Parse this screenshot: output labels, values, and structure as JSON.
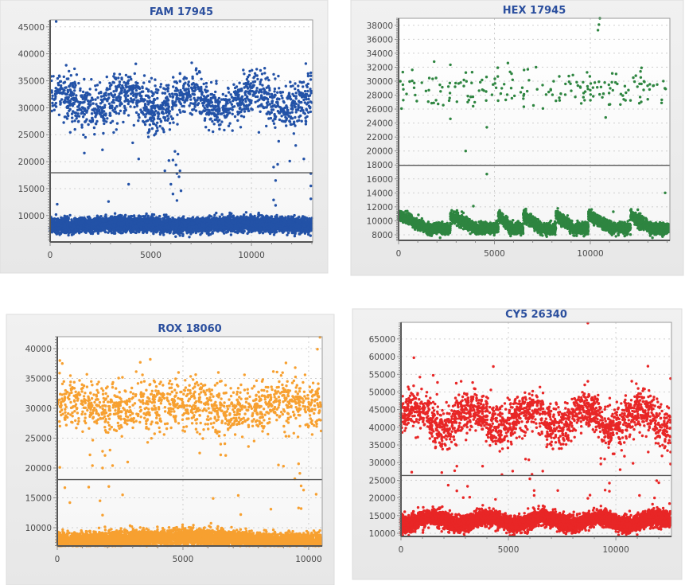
{
  "chart_data": [
    {
      "type": "scatter",
      "title": "FAM 17945",
      "color": "#2352a7",
      "threshold": 17945,
      "xlim": [
        0,
        13040
      ],
      "ylim": [
        5100,
        46300
      ],
      "xticks": [
        0,
        5000,
        10000
      ],
      "yticks": [
        10000,
        15000,
        20000,
        25000,
        30000,
        35000,
        40000,
        45000
      ],
      "grid": true,
      "clusters": [
        {
          "name": "positive",
          "x_range": [
            0,
            13000
          ],
          "y_mean": 31200,
          "y_sd": 2100,
          "wave_amp": 1400,
          "wave_period": 3200,
          "count": 1500
        },
        {
          "name": "negative",
          "x_range": [
            0,
            13000
          ],
          "y_mean": 8300,
          "y_sd": 650,
          "wave_amp": 200,
          "wave_period": 6000,
          "count": 6000
        }
      ],
      "outliers": [
        [
          300,
          46000
        ],
        [
          1700,
          21600
        ],
        [
          2600,
          22200
        ],
        [
          4400,
          20500
        ],
        [
          4100,
          23500
        ],
        [
          5700,
          18300
        ],
        [
          5900,
          20200
        ],
        [
          6100,
          20300
        ],
        [
          6200,
          21900
        ],
        [
          6250,
          19400
        ],
        [
          6300,
          17800
        ],
        [
          6350,
          21400
        ],
        [
          6400,
          17200
        ],
        [
          6450,
          18300
        ],
        [
          6000,
          15800
        ],
        [
          6100,
          14000
        ],
        [
          6300,
          12800
        ],
        [
          6500,
          14600
        ],
        [
          3900,
          15800
        ],
        [
          11100,
          19000
        ],
        [
          11300,
          19500
        ],
        [
          11200,
          16500
        ],
        [
          11100,
          12900
        ],
        [
          11200,
          11900
        ],
        [
          12200,
          23000
        ],
        [
          12600,
          20500
        ],
        [
          11900,
          20100
        ],
        [
          12950,
          17800
        ],
        [
          12950,
          15500
        ],
        [
          12950,
          13100
        ],
        [
          12700,
          38200
        ],
        [
          12950,
          36500
        ],
        [
          350,
          12100
        ],
        [
          2900,
          12600
        ]
      ]
    },
    {
      "type": "scatter",
      "title": "HEX 17945",
      "color": "#2e8540",
      "threshold": 17945,
      "xlim": [
        0,
        14150
      ],
      "ylim": [
        7200,
        39000
      ],
      "xticks": [
        0,
        5000,
        10000
      ],
      "yticks": [
        8000,
        10000,
        12000,
        14000,
        16000,
        18000,
        20000,
        22000,
        24000,
        26000,
        28000,
        30000,
        32000,
        34000,
        36000,
        38000
      ],
      "grid": true,
      "clusters": [
        {
          "name": "positive",
          "x_range": [
            0,
            14100
          ],
          "y_mean": 28800,
          "y_sd": 1500,
          "wave_amp": 0,
          "wave_period": 5000,
          "count": 190
        },
        {
          "name": "negative",
          "x_range": [
            0,
            14100
          ],
          "pattern": "sawtooth",
          "resets": [
            0,
            2700,
            5200,
            6500,
            8200,
            9900,
            12100
          ],
          "y_top": 10800,
          "y_bottom": 8900,
          "y_sd": 380,
          "count": 6000
        }
      ],
      "outliers": [
        [
          10500,
          39000
        ],
        [
          10450,
          38100
        ],
        [
          10400,
          37300
        ],
        [
          3500,
          20000
        ],
        [
          4600,
          23400
        ],
        [
          5700,
          32600
        ],
        [
          2700,
          24600
        ],
        [
          4600,
          16700
        ],
        [
          13900,
          14000
        ],
        [
          3900,
          12100
        ],
        [
          3300,
          11300
        ],
        [
          11200,
          11300
        ],
        [
          12100,
          11500
        ],
        [
          400,
          11000
        ],
        [
          10800,
          24800
        ]
      ]
    },
    {
      "type": "scatter",
      "title": "ROX 18060",
      "color": "#f7a030",
      "threshold": 18060,
      "xlim": [
        0,
        10540
      ],
      "ylim": [
        6930,
        42000
      ],
      "xticks": [
        0,
        5000,
        10000
      ],
      "yticks": [
        10000,
        15000,
        20000,
        25000,
        30000,
        35000,
        40000
      ],
      "grid": true,
      "clusters": [
        {
          "name": "positive",
          "x_range": [
            0,
            10500
          ],
          "y_mean": 30200,
          "y_sd": 2200,
          "wave_amp": 900,
          "wave_period": 4500,
          "count": 1200
        },
        {
          "name": "negative",
          "x_range": [
            0,
            10500
          ],
          "y_mean": 8000,
          "y_sd": 700,
          "wave_amp": 400,
          "wave_period": 10000,
          "count": 5000
        }
      ],
      "outliers": [
        [
          100,
          38000
        ],
        [
          200,
          37500
        ],
        [
          100,
          20100
        ],
        [
          1300,
          22200
        ],
        [
          1400,
          20400
        ],
        [
          1800,
          22800
        ],
        [
          1800,
          20000
        ],
        [
          1900,
          22100
        ],
        [
          2100,
          23000
        ],
        [
          2200,
          20400
        ],
        [
          2800,
          21000
        ],
        [
          6500,
          24000
        ],
        [
          6500,
          22200
        ],
        [
          6700,
          22100
        ],
        [
          8800,
          20500
        ],
        [
          9000,
          20300
        ],
        [
          9600,
          20700
        ],
        [
          9650,
          19100
        ],
        [
          9450,
          18200
        ],
        [
          3700,
          38200
        ],
        [
          3300,
          37700
        ],
        [
          10450,
          41900
        ],
        [
          10350,
          39900
        ],
        [
          300,
          16700
        ],
        [
          1250,
          16800
        ],
        [
          2050,
          16900
        ],
        [
          1700,
          14500
        ],
        [
          500,
          14200
        ],
        [
          2600,
          15500
        ],
        [
          6200,
          14900
        ],
        [
          7200,
          15400
        ],
        [
          9700,
          17000
        ],
        [
          9800,
          16300
        ],
        [
          10300,
          15600
        ],
        [
          9600,
          13300
        ],
        [
          9700,
          13200
        ],
        [
          8500,
          13100
        ],
        [
          7300,
          12200
        ],
        [
          1800,
          12100
        ]
      ]
    },
    {
      "type": "scatter",
      "title": "CY5 26340",
      "color": "#e82626",
      "threshold": 26340,
      "xlim": [
        0,
        12590
      ],
      "ylim": [
        9100,
        69700
      ],
      "xticks": [
        0,
        5000,
        10000
      ],
      "yticks": [
        10000,
        15000,
        20000,
        25000,
        30000,
        35000,
        40000,
        45000,
        50000,
        55000,
        60000,
        65000
      ],
      "grid": true,
      "clusters": [
        {
          "name": "positive",
          "x_range": [
            0,
            12550
          ],
          "y_mean": 42500,
          "y_sd": 3000,
          "wave_amp": 2800,
          "wave_period": 2600,
          "count": 1900
        },
        {
          "name": "negative",
          "x_range": [
            0,
            12550
          ],
          "y_mean": 13500,
          "y_sd": 1100,
          "wave_amp": 1100,
          "wave_period": 2600,
          "count": 6000
        }
      ],
      "outliers": [
        [
          8700,
          69500
        ],
        [
          600,
          59700
        ],
        [
          4300,
          57200
        ],
        [
          1500,
          54700
        ],
        [
          1700,
          52700
        ],
        [
          2800,
          53000
        ],
        [
          8700,
          53000
        ],
        [
          12550,
          53800
        ],
        [
          500,
          27300
        ],
        [
          1900,
          27200
        ],
        [
          2600,
          29000
        ],
        [
          2500,
          27700
        ],
        [
          3800,
          29000
        ],
        [
          4700,
          26600
        ],
        [
          5200,
          27600
        ],
        [
          5800,
          31000
        ],
        [
          5950,
          30800
        ],
        [
          6100,
          26700
        ],
        [
          6600,
          27600
        ],
        [
          9300,
          31200
        ],
        [
          9300,
          29600
        ],
        [
          10200,
          28000
        ],
        [
          10400,
          31800
        ],
        [
          10800,
          29800
        ],
        [
          12150,
          31900
        ],
        [
          12550,
          33000
        ],
        [
          12550,
          29600
        ],
        [
          2200,
          23600
        ],
        [
          2600,
          22000
        ],
        [
          3100,
          23300
        ],
        [
          3200,
          20200
        ],
        [
          2900,
          20100
        ],
        [
          4400,
          19600
        ],
        [
          6000,
          25400
        ],
        [
          6200,
          22100
        ],
        [
          6200,
          20700
        ],
        [
          7300,
          22100
        ],
        [
          8700,
          19900
        ],
        [
          8800,
          20800
        ],
        [
          9500,
          22200
        ],
        [
          9700,
          21900
        ],
        [
          9700,
          24200
        ],
        [
          11100,
          20700
        ],
        [
          11800,
          20000
        ],
        [
          11900,
          24900
        ],
        [
          12000,
          24300
        ],
        [
          12500,
          18400
        ]
      ]
    }
  ]
}
